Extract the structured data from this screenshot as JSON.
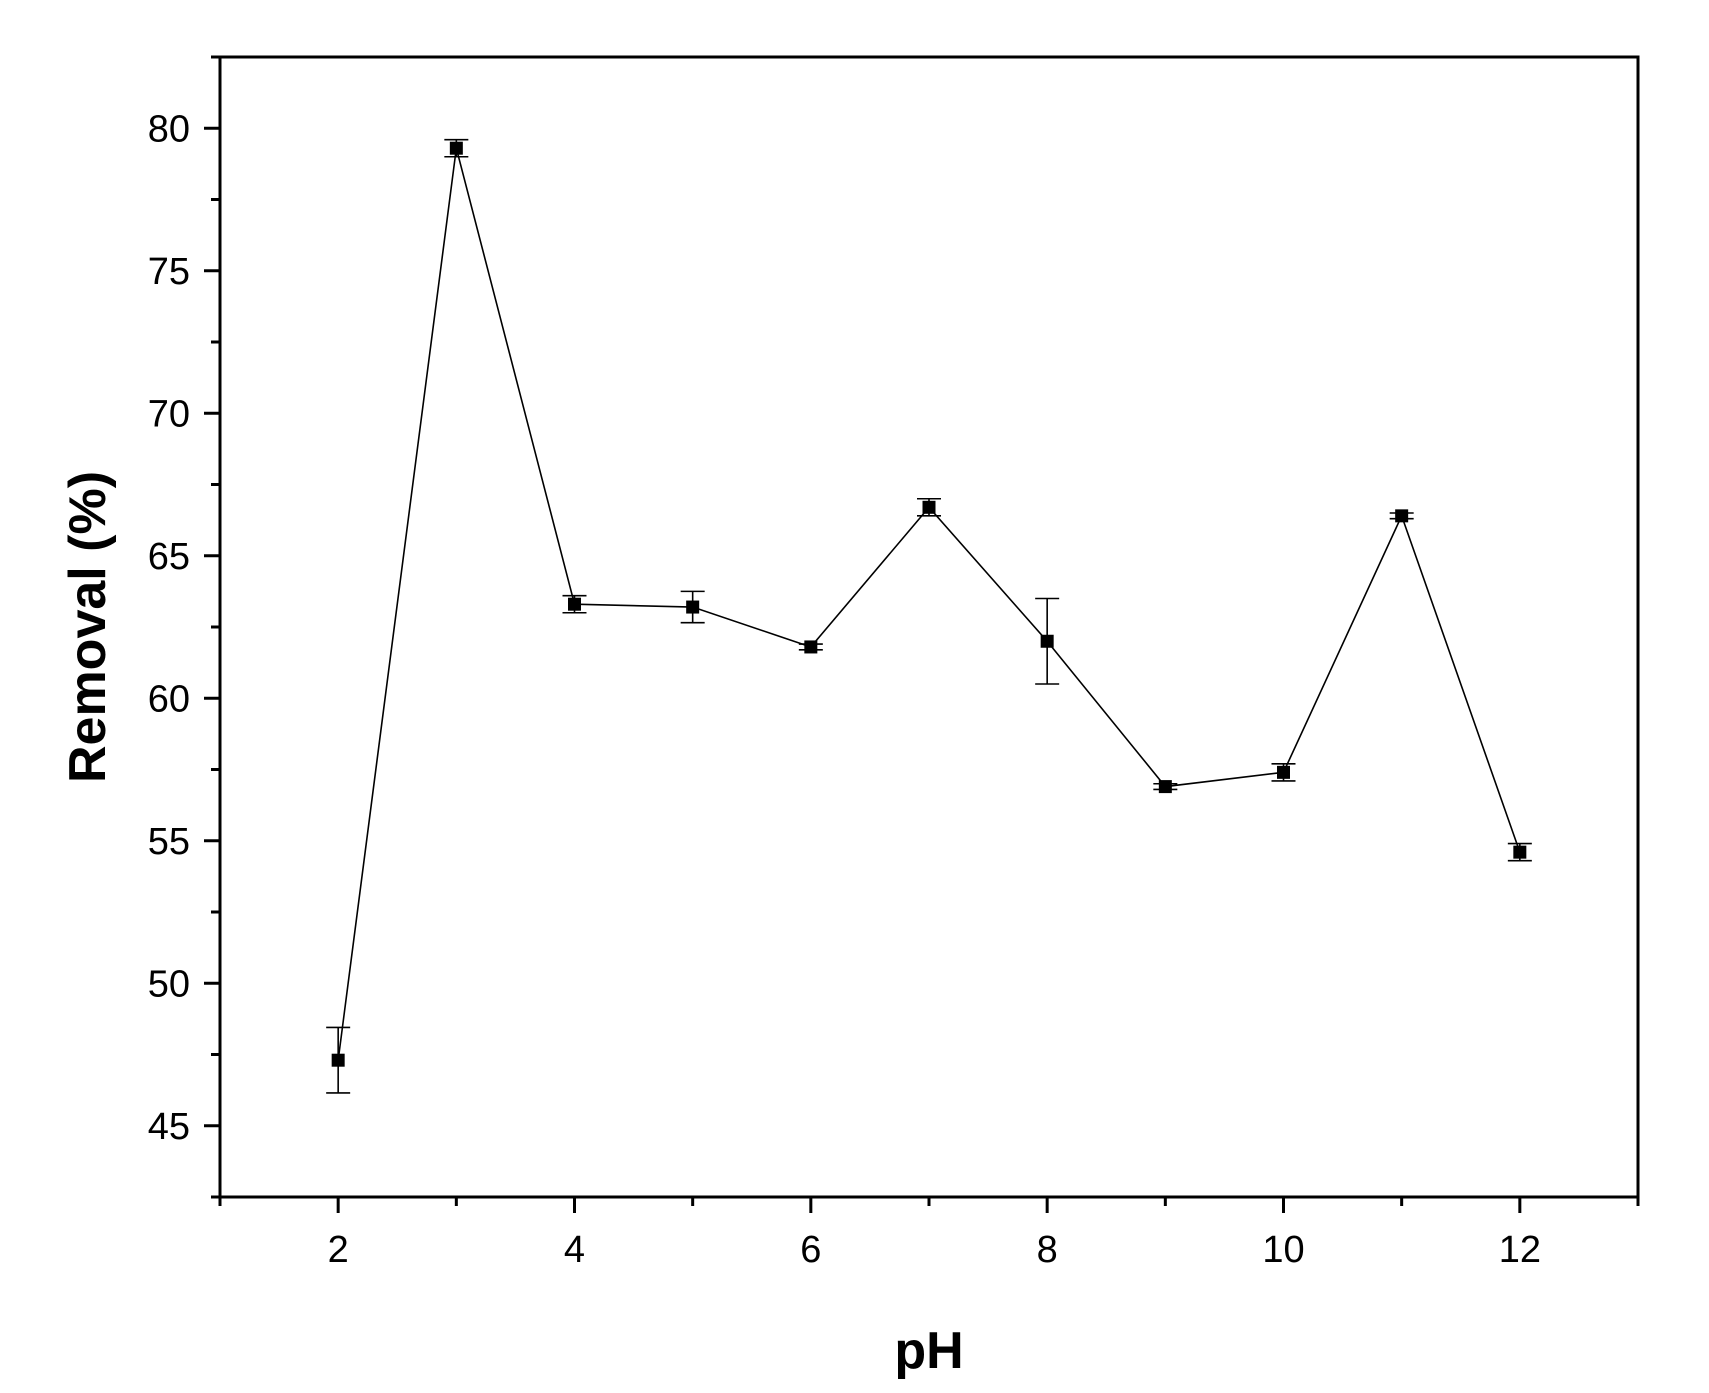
{
  "chart_data": {
    "type": "scatter",
    "title": "",
    "xlabel": "pH",
    "ylabel": "Removal (%)",
    "xlim": [
      1,
      13
    ],
    "ylim": [
      42.5,
      82.5
    ],
    "x_ticks": [
      2,
      4,
      6,
      8,
      10,
      12
    ],
    "x_minor_ticks": [
      1,
      3,
      5,
      7,
      9,
      11,
      13
    ],
    "y_ticks": [
      45,
      50,
      55,
      60,
      65,
      70,
      75,
      80
    ],
    "y_minor_ticks": [
      42.5,
      47.5,
      52.5,
      57.5,
      62.5,
      67.5,
      72.5,
      77.5,
      82.5
    ],
    "grid": false,
    "legend": "none",
    "series": [
      {
        "color": "#000000",
        "marker": "square",
        "line": true,
        "x": [
          2,
          3,
          4,
          5,
          6,
          7,
          8,
          9,
          10,
          11,
          12
        ],
        "y": [
          47.3,
          79.3,
          63.3,
          63.2,
          61.8,
          66.7,
          62.0,
          56.9,
          57.4,
          66.4,
          54.6
        ],
        "error": [
          1.15,
          0.3,
          0.3,
          0.55,
          0.1,
          0.3,
          1.5,
          0.1,
          0.3,
          0.1,
          0.3
        ]
      }
    ]
  }
}
